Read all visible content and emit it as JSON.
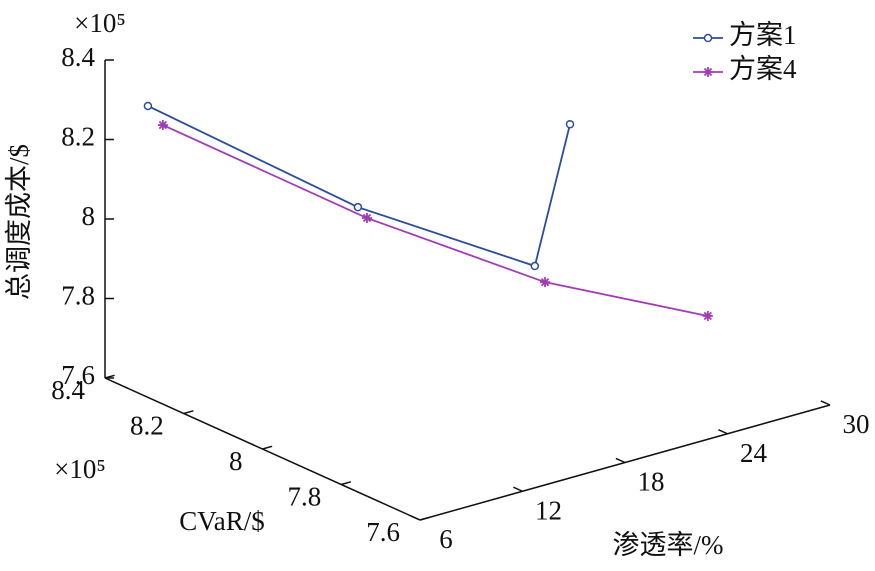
{
  "chart_data": {
    "type": "line3d",
    "xlabel": "渗透率/%",
    "ylabel": "CVaR/$",
    "zlabel": "总调度成本/$",
    "y_multiplier": "×10⁵",
    "z_multiplier": "×10⁵",
    "xlim": [
      6,
      30
    ],
    "xticks": [
      6,
      12,
      18,
      24,
      30
    ],
    "ylim": [
      7.6,
      8.4
    ],
    "yticks": [
      7.6,
      7.8,
      8,
      8.2,
      8.4
    ],
    "zlim": [
      7.6,
      8.4
    ],
    "zticks": [
      7.6,
      7.8,
      8,
      8.2,
      8.4
    ],
    "legend": "upper right",
    "series": [
      {
        "name": "方案1",
        "color": "#2b4ba0",
        "marker": "circle",
        "x": [
          6,
          12,
          18,
          24
        ],
        "y": [
          8.291,
          8.018,
          7.829,
          8.0
        ],
        "z": [
          8.333,
          8.128,
          7.992,
          8.2
        ]
      },
      {
        "name": "方案4",
        "color": "#a23cb4",
        "marker": "star",
        "x": [
          6,
          12,
          18,
          24
        ],
        "y": [
          8.253,
          7.995,
          7.803,
          7.65
        ],
        "z": [
          8.302,
          8.111,
          7.963,
          7.874
        ]
      }
    ]
  }
}
